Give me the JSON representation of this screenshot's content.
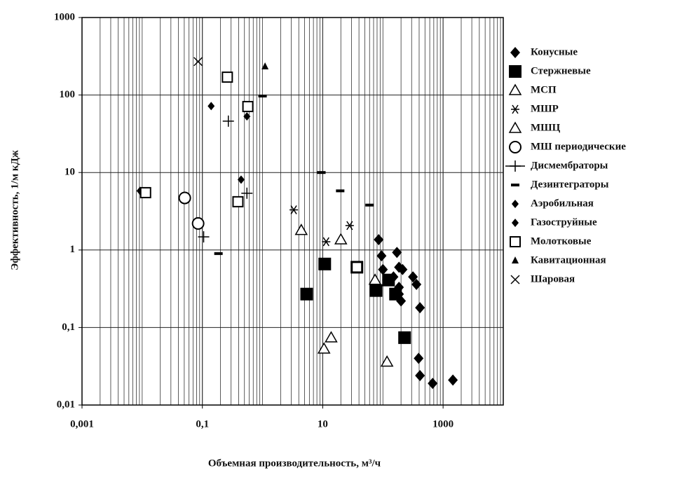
{
  "chart_data": {
    "type": "scatter",
    "xlabel": "Объемная производительность, м³/ч",
    "ylabel": "Эффективность, 1/м кДж",
    "xlog": true,
    "ylog": true,
    "grid": true,
    "minor_grid": true,
    "legend": "right",
    "xlim": [
      0.001,
      10000
    ],
    "ylim": [
      0.01,
      1000
    ],
    "xticks": [
      {
        "value": 0.001,
        "label": "0,001"
      },
      {
        "value": 0.1,
        "label": "0,1"
      },
      10,
      1000
    ],
    "yticks": [
      {
        "value": 0.01,
        "label": "0,01"
      },
      {
        "value": 0.1,
        "label": "0,1"
      },
      1,
      10,
      100,
      1000
    ],
    "series": [
      {
        "name": "Конусные",
        "color": "#000000",
        "marker": "diamond",
        "x": [
          85,
          95,
          100,
          117,
          171,
          185,
          150,
          212,
          185,
          185,
          200,
          316,
          361,
          413,
          392,
          413,
          670,
          1455
        ],
        "values": [
          1.36,
          0.84,
          0.56,
          0.41,
          0.93,
          0.6,
          0.45,
          0.56,
          0.33,
          0.27,
          0.22,
          0.45,
          0.36,
          0.18,
          0.04,
          0.024,
          0.019,
          0.021
        ]
      },
      {
        "name": "Стержневые",
        "color": "#000000",
        "marker": "square",
        "x": [
          5.4,
          10.8,
          37,
          77,
          124,
          162,
          229
        ],
        "values": [
          0.27,
          0.66,
          0.6,
          0.3,
          0.41,
          0.27,
          0.074
        ]
      },
      {
        "name": "МСП",
        "color": "#000000",
        "marker": "triangle",
        "x": [
          10.5,
          13.8,
          20,
          117
        ],
        "values": [
          0.053,
          0.074,
          1.36,
          0.036
        ]
      },
      {
        "name": "МШР",
        "color": "#000000",
        "marker": "asterisk",
        "x": [
          3.3,
          11.4,
          28
        ],
        "values": [
          3.3,
          1.28,
          2.07
        ]
      },
      {
        "name": "МШЦ",
        "color": "#000000",
        "marker": "triangle",
        "x": [
          4.4,
          74
        ],
        "values": [
          1.8,
          0.41
        ]
      },
      {
        "name": "МШ периодические",
        "color": "#000000",
        "marker": "circle",
        "x": [
          0.051,
          0.085
        ],
        "values": [
          4.7,
          2.2
        ]
      },
      {
        "name": "Дисмембраторы",
        "color": "#000000",
        "marker": "plus",
        "x": [
          0.27,
          0.55,
          0.105
        ],
        "values": [
          46,
          5.4,
          1.48
        ]
      },
      {
        "name": "Дезинтеграторы",
        "color": "#000000",
        "marker": "dash",
        "x": [
          1.0,
          9.5,
          19.5,
          60,
          0.185
        ],
        "values": [
          97,
          10,
          5.8,
          3.8,
          0.9
        ]
      },
      {
        "name": "Аэробильная",
        "color": "#000000",
        "marker": "small-diamond",
        "x": [
          0.14,
          0.55
        ],
        "values": [
          72,
          53
        ]
      },
      {
        "name": "Газоструйные",
        "color": "#000000",
        "marker": "small-diamond",
        "x": [
          0.44,
          0.0092
        ],
        "values": [
          8.1,
          5.8
        ]
      },
      {
        "name": "Молотковые",
        "color": "#000000",
        "marker": "open-square",
        "x": [
          0.26,
          0.57,
          0.39,
          0.0114,
          37
        ],
        "values": [
          170,
          71,
          4.2,
          5.5,
          0.6
        ]
      },
      {
        "name": "Кавитационная",
        "color": "#000000",
        "marker": "small-triangle",
        "x": [
          1.1
        ],
        "values": [
          233
        ]
      },
      {
        "name": "Шаровая",
        "color": "#000000",
        "marker": "x",
        "x": [
          0.085
        ],
        "values": [
          270
        ]
      }
    ]
  }
}
